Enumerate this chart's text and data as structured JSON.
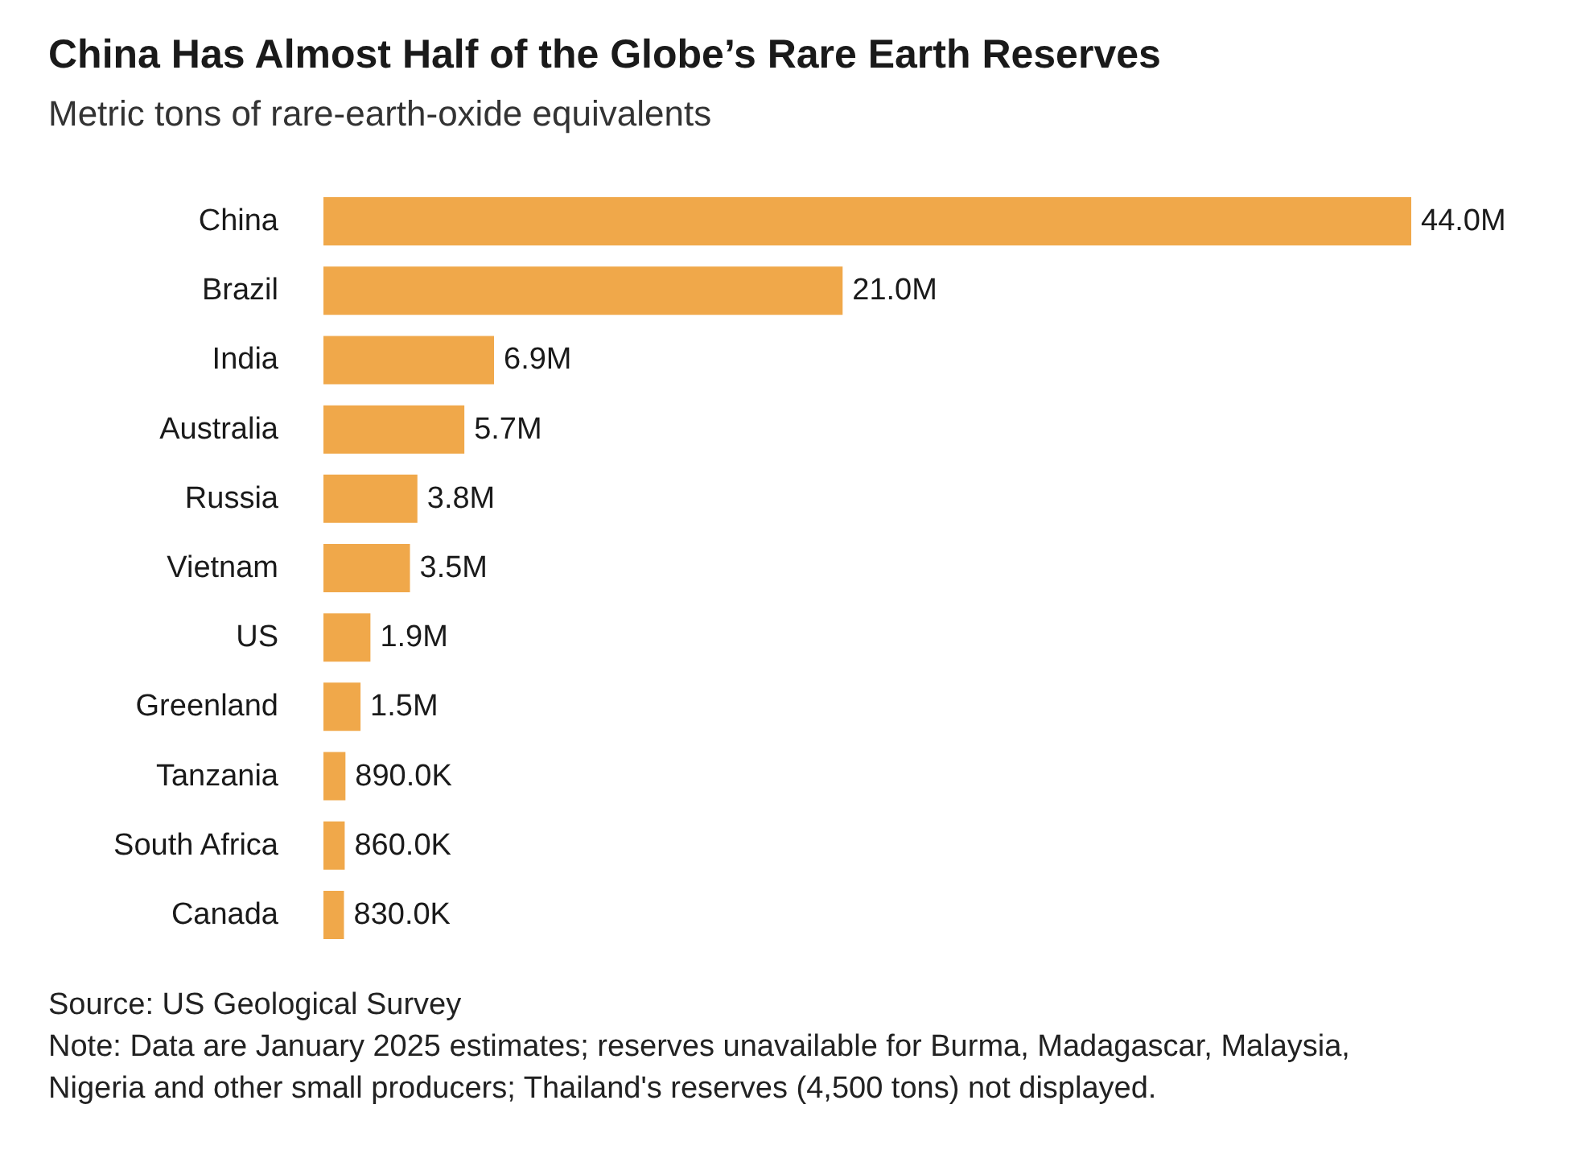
{
  "chart_data": {
    "type": "bar",
    "orientation": "horizontal",
    "title": "China Has Almost Half of the Globe’s Rare Earth Reserves",
    "subtitle": "Metric tons of rare-earth-oxide equivalents",
    "categories": [
      "China",
      "Brazil",
      "India",
      "Australia",
      "Russia",
      "Vietnam",
      "US",
      "Greenland",
      "Tanzania",
      "South Africa",
      "Canada"
    ],
    "values": [
      44000000,
      21000000,
      6900000,
      5700000,
      3800000,
      3500000,
      1900000,
      1500000,
      890000,
      860000,
      830000
    ],
    "value_labels": [
      "44.0M",
      "21.0M",
      "6.9M",
      "5.7M",
      "3.8M",
      "3.5M",
      "1.9M",
      "1.5M",
      "890.0K",
      "860.0K",
      "830.0K"
    ],
    "color": "#f0a84a",
    "annotations": [
      "Source: US Geological Survey",
      "Note: Data are January 2025 estimates; reserves unavailable for Burma, Madagascar, Malaysia, Nigeria and other small producers; Thailand's reserves (4,500 tons) not displayed."
    ]
  }
}
